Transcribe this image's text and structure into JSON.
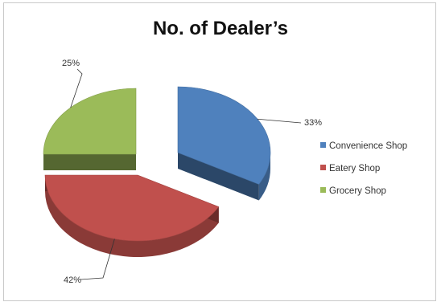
{
  "chart_data": {
    "type": "pie",
    "title": "No. of Dealer’s",
    "categories": [
      "Convenience Shop",
      "Eatery Shop",
      "Grocery Shop"
    ],
    "values": [
      33,
      42,
      25
    ],
    "data_labels": [
      "33%",
      "42%",
      "25%"
    ],
    "colors": [
      "#4f81bd",
      "#c0504d",
      "#9bbb59"
    ],
    "legend": "right",
    "style": "3d-exploded"
  }
}
